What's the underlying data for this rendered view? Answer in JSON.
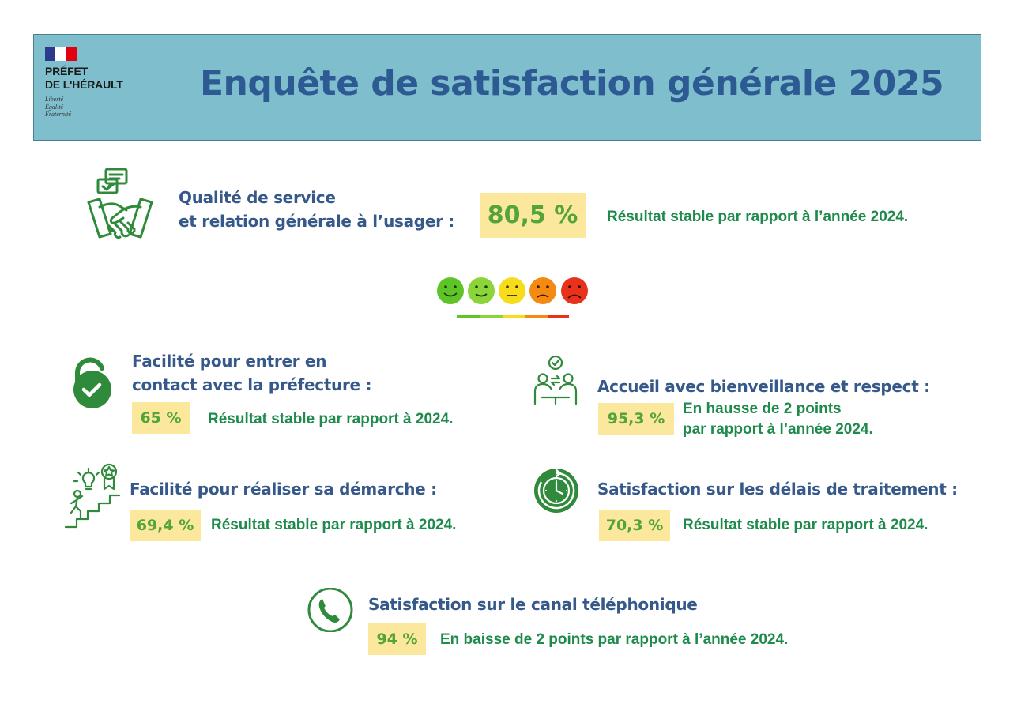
{
  "header": {
    "logo_line1": "PRÉFET",
    "logo_line2": "DE L'HÉRAULT",
    "motto": [
      "Liberté",
      "Égalité",
      "Fraternité"
    ],
    "title": "Enquête de satisfaction générale 2025"
  },
  "colors": {
    "header_bg": "#7fbfcd",
    "title": "#2d5a93",
    "section_title": "#36598a",
    "value_bg": "#fbe89d",
    "value_text": "#53a43b",
    "result_text": "#1e8a4c",
    "icon_green": "#2f8a3b"
  },
  "main": {
    "title_line1": "Qualité de service",
    "title_line2": "et relation générale à l’usager :",
    "value": "80,5 %",
    "result": "Résultat stable par rapport à l’année 2024.",
    "icon": "handshake-icon"
  },
  "scale": {
    "faces": [
      {
        "mood": "very-satisfied",
        "color": "#5ec428"
      },
      {
        "mood": "satisfied",
        "color": "#8bd43a"
      },
      {
        "mood": "neutral",
        "color": "#f7dc1b"
      },
      {
        "mood": "dissatisfied",
        "color": "#f58a12"
      },
      {
        "mood": "very-dissatisfied",
        "color": "#e8321c"
      }
    ]
  },
  "items": {
    "contact": {
      "title_line1": "Facilité pour entrer en",
      "title_line2": "contact avec la préfecture :",
      "value": "65 %",
      "result": "Résultat stable par rapport à 2024.",
      "icon": "unlock-icon"
    },
    "accueil": {
      "title": "Accueil avec bienveillance et respect :",
      "value": "95,3 %",
      "result_line1": "En hausse de 2 points",
      "result_line2": "par rapport à l’année 2024.",
      "icon": "meeting-icon"
    },
    "demarche": {
      "title": "Facilité pour réaliser sa démarche :",
      "value": "69,4 %",
      "result": "Résultat stable par rapport à 2024.",
      "icon": "progress-steps-icon"
    },
    "delais": {
      "title": "Satisfaction sur les délais de traitement :",
      "value": "70,3 %",
      "result": "Résultat stable par rapport à 2024.",
      "icon": "clock-icon"
    },
    "telephone": {
      "title": "Satisfaction sur le canal téléphonique",
      "value": "94 %",
      "result": "En baisse de 2 points par rapport à l’année 2024.",
      "icon": "phone-icon"
    }
  }
}
